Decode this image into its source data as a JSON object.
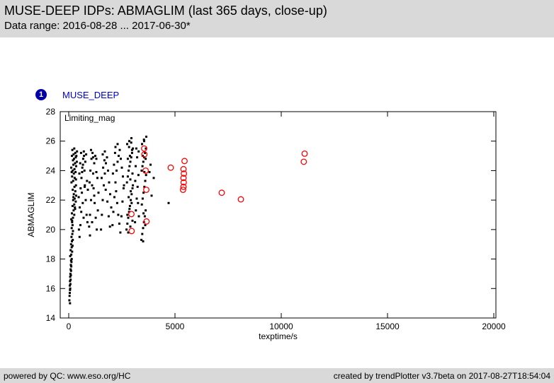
{
  "header": {
    "title": "MUSE-DEEP IDPs: ABMAGLIM (last 365 days, close-up)",
    "subtitle": "Data range: 2016-08-28 ... 2017-06-30*"
  },
  "legend": {
    "index": "1",
    "label": "MUSE_DEEP",
    "badge_color": "#0000a8",
    "label_color": "#0000cc"
  },
  "colors": {
    "header_bg": "#d9d9d9",
    "footer_bg": "#d9d9d9",
    "black_points": "#000000",
    "red_points": "#ff0000"
  },
  "footer": {
    "left": "powered by QC: www.eso.org/HC",
    "right": "created by trendPlotter v3.7beta on 2017-08-27T18:54:04"
  },
  "chart_data": {
    "type": "scatter",
    "title": "Limiting_mag",
    "xlabel": "texptime/s",
    "ylabel": "ABMAGLIM",
    "xlim": [
      -400,
      20100
    ],
    "ylim": [
      14,
      28
    ],
    "xticks": [
      0,
      5000,
      10000,
      15000,
      20000
    ],
    "yticks": [
      14,
      16,
      18,
      20,
      22,
      24,
      26,
      28
    ],
    "grid": false,
    "series": [
      {
        "name": "black_dots",
        "marker": "dot",
        "color": "#000000",
        "points": [
          [
            30,
            15.2
          ],
          [
            40,
            15.5
          ],
          [
            50,
            15.7
          ],
          [
            60,
            15.9
          ],
          [
            70,
            16.0
          ],
          [
            50,
            16.2
          ],
          [
            80,
            16.3
          ],
          [
            60,
            16.5
          ],
          [
            90,
            16.6
          ],
          [
            70,
            16.8
          ],
          [
            100,
            16.9
          ],
          [
            80,
            17.0
          ],
          [
            110,
            17.2
          ],
          [
            90,
            17.3
          ],
          [
            120,
            17.5
          ],
          [
            100,
            17.6
          ],
          [
            130,
            17.8
          ],
          [
            110,
            17.9
          ],
          [
            140,
            18.0
          ],
          [
            60,
            15.0
          ],
          [
            70,
            18.2
          ],
          [
            120,
            18.3
          ],
          [
            160,
            18.5
          ],
          [
            90,
            18.6
          ],
          [
            140,
            18.8
          ],
          [
            180,
            18.9
          ],
          [
            110,
            19.0
          ],
          [
            150,
            19.2
          ],
          [
            190,
            19.3
          ],
          [
            130,
            19.5
          ],
          [
            170,
            19.7
          ],
          [
            200,
            19.9
          ],
          [
            140,
            20.1
          ],
          [
            180,
            20.3
          ],
          [
            160,
            20.5
          ],
          [
            120,
            20.7
          ],
          [
            200,
            20.8
          ],
          [
            260,
            21.0
          ],
          [
            150,
            21.1
          ],
          [
            230,
            21.3
          ],
          [
            300,
            21.4
          ],
          [
            180,
            21.6
          ],
          [
            260,
            21.7
          ],
          [
            330,
            21.9
          ],
          [
            210,
            22.0
          ],
          [
            280,
            22.1
          ],
          [
            350,
            22.3
          ],
          [
            240,
            22.4
          ],
          [
            310,
            22.6
          ],
          [
            190,
            22.7
          ],
          [
            270,
            22.9
          ],
          [
            340,
            23.0
          ],
          [
            220,
            22.2
          ],
          [
            290,
            21.5
          ],
          [
            160,
            20.6
          ],
          [
            130,
            23.2
          ],
          [
            210,
            23.3
          ],
          [
            280,
            23.5
          ],
          [
            160,
            23.6
          ],
          [
            240,
            23.8
          ],
          [
            320,
            23.9
          ],
          [
            190,
            24.0
          ],
          [
            270,
            24.1
          ],
          [
            350,
            24.3
          ],
          [
            220,
            24.4
          ],
          [
            300,
            24.5
          ],
          [
            380,
            24.6
          ],
          [
            250,
            24.8
          ],
          [
            330,
            24.9
          ],
          [
            150,
            25.0
          ],
          [
            230,
            25.1
          ],
          [
            310,
            25.2
          ],
          [
            390,
            25.3
          ],
          [
            170,
            25.4
          ],
          [
            260,
            25.5
          ],
          [
            120,
            24.2
          ],
          [
            200,
            24.7
          ],
          [
            340,
            23.4
          ],
          [
            360,
            25.0
          ],
          [
            140,
            23.9
          ],
          [
            480,
            20.0
          ],
          [
            520,
            21.5
          ],
          [
            560,
            22.8
          ],
          [
            600,
            23.5
          ],
          [
            640,
            24.2
          ],
          [
            680,
            24.8
          ],
          [
            720,
            25.0
          ],
          [
            760,
            23.0
          ],
          [
            800,
            22.0
          ],
          [
            840,
            21.0
          ],
          [
            880,
            20.5
          ],
          [
            500,
            23.8
          ],
          [
            540,
            24.5
          ],
          [
            580,
            25.2
          ],
          [
            620,
            22.5
          ],
          [
            660,
            21.8
          ],
          [
            700,
            20.8
          ],
          [
            740,
            24.0
          ],
          [
            780,
            24.6
          ],
          [
            820,
            25.1
          ],
          [
            860,
            23.3
          ],
          [
            900,
            22.7
          ],
          [
            470,
            22.2
          ],
          [
            510,
            19.5
          ],
          [
            550,
            20.3
          ],
          [
            590,
            21.2
          ],
          [
            630,
            23.9
          ],
          [
            670,
            24.4
          ],
          [
            710,
            25.3
          ],
          [
            750,
            22.9
          ],
          [
            960,
            20.2
          ],
          [
            1000,
            21.0
          ],
          [
            1050,
            22.0
          ],
          [
            1100,
            23.0
          ],
          [
            1150,
            23.8
          ],
          [
            1200,
            24.5
          ],
          [
            1250,
            25.0
          ],
          [
            1300,
            24.8
          ],
          [
            1350,
            23.5
          ],
          [
            1400,
            22.5
          ],
          [
            980,
            23.2
          ],
          [
            1020,
            24.0
          ],
          [
            1070,
            24.8
          ],
          [
            1120,
            25.2
          ],
          [
            1170,
            22.8
          ],
          [
            1220,
            21.8
          ],
          [
            1270,
            20.8
          ],
          [
            1320,
            20.0
          ],
          [
            1370,
            21.3
          ],
          [
            1000,
            19.6
          ],
          [
            1100,
            20.5
          ],
          [
            1200,
            22.3
          ],
          [
            1300,
            23.9
          ],
          [
            1150,
            24.9
          ],
          [
            1050,
            25.4
          ],
          [
            1520,
            20.0
          ],
          [
            1560,
            21.0
          ],
          [
            1600,
            22.0
          ],
          [
            1650,
            23.0
          ],
          [
            1700,
            23.8
          ],
          [
            1750,
            24.5
          ],
          [
            1800,
            24.9
          ],
          [
            1850,
            24.0
          ],
          [
            1900,
            23.2
          ],
          [
            1950,
            22.4
          ],
          [
            2000,
            21.5
          ],
          [
            1550,
            23.5
          ],
          [
            1620,
            24.2
          ],
          [
            1680,
            24.7
          ],
          [
            1740,
            22.7
          ],
          [
            1820,
            21.9
          ],
          [
            1880,
            20.9
          ],
          [
            1940,
            20.2
          ],
          [
            1600,
            25.1
          ],
          [
            1700,
            25.3
          ],
          [
            2060,
            20.3
          ],
          [
            2100,
            21.2
          ],
          [
            2150,
            22.2
          ],
          [
            2200,
            23.2
          ],
          [
            2250,
            24.0
          ],
          [
            2300,
            24.6
          ],
          [
            2350,
            25.0
          ],
          [
            2400,
            25.4
          ],
          [
            2450,
            24.8
          ],
          [
            2500,
            24.2
          ],
          [
            2550,
            23.6
          ],
          [
            2600,
            23.0
          ],
          [
            2080,
            23.8
          ],
          [
            2130,
            24.4
          ],
          [
            2180,
            25.2
          ],
          [
            2230,
            22.6
          ],
          [
            2280,
            21.8
          ],
          [
            2330,
            21.0
          ],
          [
            2380,
            20.4
          ],
          [
            2430,
            19.8
          ],
          [
            2480,
            20.9
          ],
          [
            2530,
            21.9
          ],
          [
            2580,
            22.8
          ],
          [
            2200,
            25.6
          ],
          [
            2300,
            25.8
          ],
          [
            2720,
            20.0
          ],
          [
            2760,
            20.4
          ],
          [
            2800,
            20.8
          ],
          [
            2840,
            21.2
          ],
          [
            2880,
            21.6
          ],
          [
            2920,
            22.0
          ],
          [
            2960,
            22.4
          ],
          [
            3000,
            22.8
          ],
          [
            2740,
            23.2
          ],
          [
            2780,
            23.6
          ],
          [
            2820,
            24.0
          ],
          [
            2860,
            24.3
          ],
          [
            2900,
            24.6
          ],
          [
            2940,
            24.9
          ],
          [
            2980,
            25.2
          ],
          [
            3020,
            25.5
          ],
          [
            2750,
            25.8
          ],
          [
            2850,
            26.0
          ],
          [
            2950,
            26.2
          ],
          [
            2800,
            19.8
          ],
          [
            2900,
            20.2
          ],
          [
            3000,
            20.6
          ],
          [
            2760,
            21.0
          ],
          [
            2860,
            21.4
          ],
          [
            2960,
            21.8
          ],
          [
            2820,
            22.2
          ],
          [
            2920,
            22.6
          ],
          [
            3020,
            23.0
          ],
          [
            2780,
            24.8
          ],
          [
            2880,
            25.0
          ],
          [
            2980,
            25.4
          ],
          [
            2840,
            25.6
          ],
          [
            2940,
            25.9
          ],
          [
            2900,
            23.4
          ],
          [
            3000,
            23.8
          ],
          [
            3120,
            20.5
          ],
          [
            3160,
            21.3
          ],
          [
            3200,
            22.1
          ],
          [
            3240,
            22.9
          ],
          [
            3280,
            23.7
          ],
          [
            3150,
            24.3
          ],
          [
            3220,
            24.9
          ],
          [
            3290,
            25.3
          ],
          [
            3180,
            25.5
          ],
          [
            3130,
            23.3
          ],
          [
            3260,
            21.8
          ],
          [
            3300,
            20.9
          ],
          [
            3420,
            19.3
          ],
          [
            3460,
            19.7
          ],
          [
            3500,
            20.1
          ],
          [
            3540,
            20.5
          ],
          [
            3580,
            20.9
          ],
          [
            3620,
            21.3
          ],
          [
            3440,
            21.7
          ],
          [
            3480,
            22.1
          ],
          [
            3520,
            22.5
          ],
          [
            3560,
            22.9
          ],
          [
            3600,
            23.3
          ],
          [
            3640,
            23.7
          ],
          [
            3430,
            24.0
          ],
          [
            3470,
            24.3
          ],
          [
            3510,
            24.6
          ],
          [
            3550,
            24.9
          ],
          [
            3590,
            25.2
          ],
          [
            3630,
            25.5
          ],
          [
            3450,
            25.8
          ],
          [
            3550,
            26.0
          ],
          [
            3650,
            26.3
          ],
          [
            3500,
            19.2
          ],
          [
            3600,
            20.3
          ],
          [
            3520,
            21.1
          ],
          [
            3560,
            23.9
          ],
          [
            3480,
            25.0
          ],
          [
            3620,
            24.8
          ],
          [
            3540,
            26.1
          ],
          [
            3800,
            23.9
          ],
          [
            3900,
            22.3
          ],
          [
            3850,
            24.4
          ],
          [
            4000,
            23.5
          ],
          [
            4700,
            21.8
          ]
        ]
      },
      {
        "name": "red_circles",
        "marker": "open-circle",
        "color": "#ff0000",
        "points": [
          [
            3550,
            25.5
          ],
          [
            3560,
            25.1
          ],
          [
            3620,
            24.0
          ],
          [
            4800,
            24.2
          ],
          [
            5450,
            24.65
          ],
          [
            5400,
            24.1
          ],
          [
            5420,
            23.8
          ],
          [
            5400,
            23.5
          ],
          [
            5410,
            23.2
          ],
          [
            5400,
            22.9
          ],
          [
            5380,
            22.7
          ],
          [
            3650,
            22.7
          ],
          [
            7200,
            22.5
          ],
          [
            8100,
            22.05
          ],
          [
            11100,
            25.15
          ],
          [
            11060,
            24.6
          ],
          [
            2950,
            21.05
          ],
          [
            3660,
            20.55
          ],
          [
            2960,
            19.9
          ]
        ]
      }
    ]
  }
}
